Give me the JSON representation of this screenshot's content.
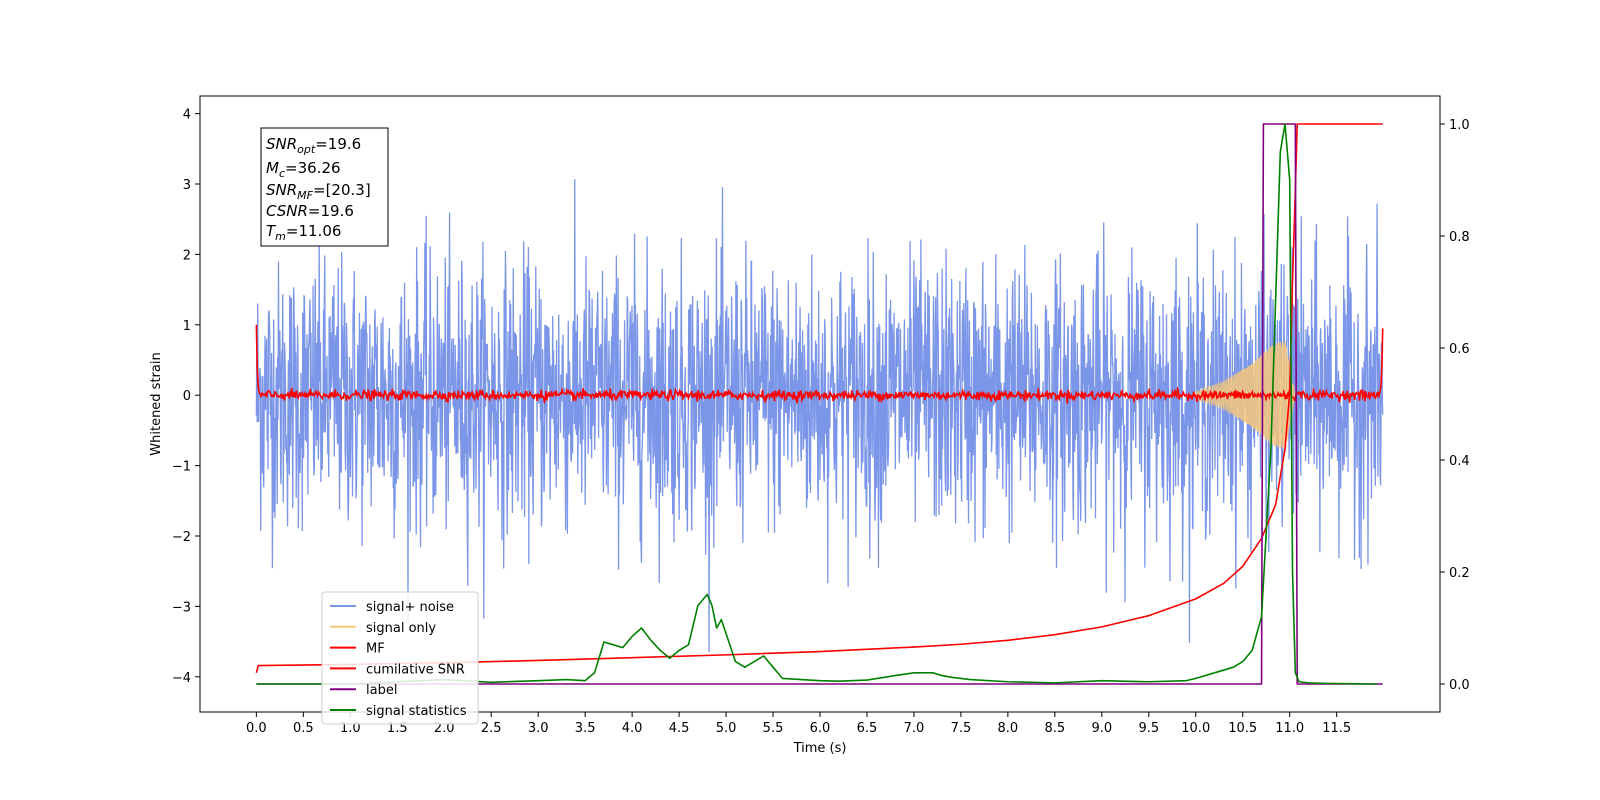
{
  "chart_data": {
    "type": "line",
    "xlabel": "Time (s)",
    "ylabel_left": "Whitened strain",
    "x_ticks": [
      "0.0",
      "0.5",
      "1.0",
      "1.5",
      "2.0",
      "2.5",
      "3.0",
      "3.5",
      "4.0",
      "4.5",
      "5.0",
      "5.5",
      "6.0",
      "6.5",
      "7.0",
      "7.5",
      "8.0",
      "8.5",
      "9.0",
      "9.5",
      "10.0",
      "10.5",
      "11.0",
      "11.5"
    ],
    "y_left_ticks": [
      "−4",
      "−3",
      "−2",
      "−1",
      "0",
      "1",
      "2",
      "3",
      "4"
    ],
    "y_right_ticks": [
      "0.0",
      "0.2",
      "0.4",
      "0.6",
      "0.8",
      "1.0"
    ],
    "xlim": [
      -0.6,
      12.6
    ],
    "ylim_left": [
      -4.5,
      4.25
    ],
    "ylim_right": [
      -0.05,
      1.05
    ],
    "grid": false,
    "legend_location": "lower-left",
    "annotation": {
      "snr_opt": {
        "base": "SNR",
        "sub": "opt",
        "value": "=19.6"
      },
      "mc": {
        "base": "M",
        "sub": "c",
        "value": "=36.26"
      },
      "snr_mf": {
        "base": "SNR",
        "sub": "MF",
        "value": "=[20.3]"
      },
      "csnr": {
        "base": "CSNR",
        "sub": "",
        "value": "=19.6"
      },
      "tm": {
        "base": "T",
        "sub": "m",
        "value": "=11.06"
      }
    },
    "series": [
      {
        "name": "signal+ noise",
        "color": "#7b96e8",
        "axis": "left",
        "x_range": [
          0.0,
          11.99
        ],
        "typical_amplitude": 1.2,
        "max_observed": 3.45,
        "min_observed": -3.65
      },
      {
        "name": "signal only",
        "color": "#f5c77a",
        "axis": "left",
        "x": [
          10.0,
          10.3,
          10.6,
          10.8,
          10.95,
          11.06
        ],
        "envelope": [
          0.05,
          0.2,
          0.45,
          0.7,
          0.8,
          0.0
        ]
      },
      {
        "name": "MF",
        "color": "#ff0000",
        "axis": "left",
        "x_range": [
          0.0,
          11.99
        ],
        "start_value": 1.0,
        "end_value": 0.95,
        "baseline": 0.0
      },
      {
        "name": "cumilative SNR",
        "color": "#ff0000",
        "axis": "right",
        "x": [
          0.0,
          0.02,
          1.0,
          2.0,
          3.0,
          4.0,
          5.0,
          6.0,
          7.0,
          7.5,
          8.0,
          8.5,
          9.0,
          9.5,
          10.0,
          10.3,
          10.5,
          10.7,
          10.85,
          10.95,
          11.0,
          11.03,
          11.06,
          11.08,
          11.99
        ],
        "values": [
          0.02,
          0.033,
          0.035,
          0.038,
          0.042,
          0.047,
          0.052,
          0.058,
          0.066,
          0.071,
          0.078,
          0.088,
          0.102,
          0.122,
          0.152,
          0.18,
          0.21,
          0.26,
          0.32,
          0.42,
          0.52,
          0.72,
          0.88,
          1.0,
          1.0
        ]
      },
      {
        "name": "label",
        "color": "#800080",
        "axis": "right",
        "x": [
          0.0,
          10.7,
          10.72,
          11.06,
          11.08,
          11.99
        ],
        "values": [
          0.0,
          0.0,
          1.0,
          1.0,
          0.0,
          0.0
        ]
      },
      {
        "name": "signal statistics",
        "color": "#008000",
        "axis": "right",
        "x": [
          0.0,
          1.0,
          2.0,
          2.5,
          3.0,
          3.3,
          3.5,
          3.6,
          3.7,
          3.8,
          3.9,
          4.0,
          4.1,
          4.2,
          4.3,
          4.4,
          4.5,
          4.6,
          4.7,
          4.75,
          4.8,
          4.85,
          4.9,
          4.95,
          5.0,
          5.1,
          5.2,
          5.3,
          5.4,
          5.5,
          5.6,
          5.8,
          6.0,
          6.2,
          6.5,
          6.8,
          7.0,
          7.2,
          7.3,
          7.4,
          7.6,
          8.0,
          8.5,
          9.0,
          9.5,
          9.9,
          10.0,
          10.2,
          10.4,
          10.5,
          10.6,
          10.7,
          10.8,
          10.9,
          10.95,
          11.0,
          11.03,
          11.06,
          11.1,
          11.2,
          11.4,
          11.93
        ],
        "values": [
          0.0,
          0.0,
          0.008,
          0.003,
          0.006,
          0.008,
          0.006,
          0.02,
          0.075,
          0.07,
          0.065,
          0.085,
          0.1,
          0.078,
          0.06,
          0.046,
          0.06,
          0.07,
          0.14,
          0.15,
          0.16,
          0.14,
          0.1,
          0.115,
          0.09,
          0.04,
          0.03,
          0.04,
          0.05,
          0.03,
          0.01,
          0.008,
          0.006,
          0.005,
          0.007,
          0.015,
          0.02,
          0.02,
          0.015,
          0.012,
          0.008,
          0.004,
          0.002,
          0.006,
          0.004,
          0.006,
          0.01,
          0.02,
          0.03,
          0.04,
          0.06,
          0.12,
          0.42,
          0.95,
          1.0,
          0.9,
          0.2,
          0.02,
          0.004,
          0.002,
          0.001,
          0.0
        ]
      }
    ]
  }
}
